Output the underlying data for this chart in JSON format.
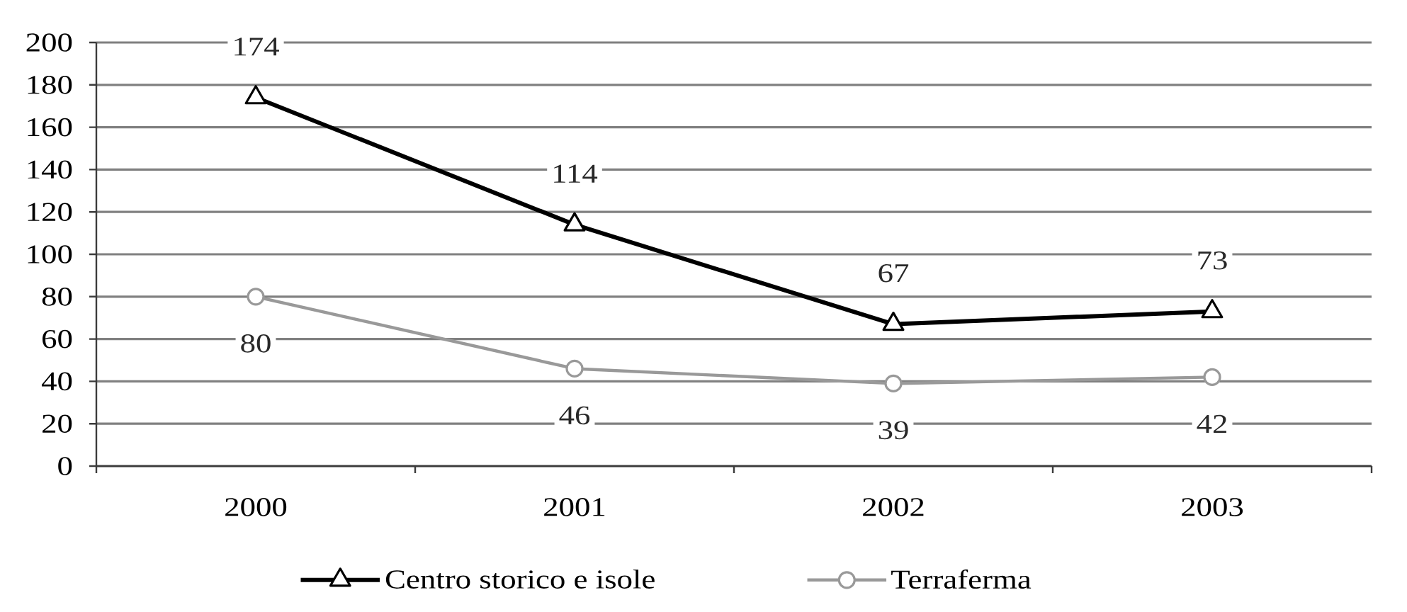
{
  "chart_data": {
    "type": "line",
    "categories": [
      "2000",
      "2001",
      "2002",
      "2003"
    ],
    "series": [
      {
        "name": "Centro storico e isole",
        "color": "#000000",
        "marker": "triangle",
        "values": [
          174,
          114,
          67,
          73
        ]
      },
      {
        "name": "Terraferma",
        "color": "#999999",
        "marker": "circle",
        "values": [
          80,
          46,
          39,
          42
        ]
      }
    ],
    "ylim": [
      0,
      200
    ],
    "yticks": [
      0,
      20,
      40,
      60,
      80,
      100,
      120,
      140,
      160,
      180,
      200
    ],
    "grid": "y",
    "legend": "bottom",
    "data_labels": true
  }
}
